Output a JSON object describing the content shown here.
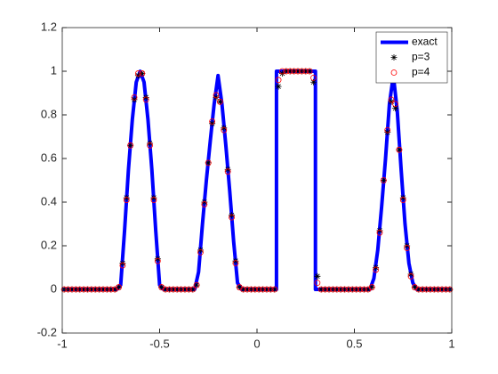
{
  "chart_data": {
    "type": "line",
    "xlim": [
      -1,
      1
    ],
    "xticks": [
      -1,
      -0.5,
      0,
      0.5,
      1
    ],
    "ylim": [
      -0.2,
      1.2
    ],
    "yticks": [
      -0.2,
      0,
      0.2,
      0.4,
      0.6,
      0.8,
      1,
      1.2
    ],
    "grid": false,
    "legend_position": "upper-right",
    "series": [
      {
        "name": "exact",
        "color": "#0000ff",
        "mode": "line",
        "x": [
          -1,
          -0.72,
          -0.7,
          -0.68,
          -0.66,
          -0.64,
          -0.62,
          -0.6,
          -0.58,
          -0.56,
          -0.54,
          -0.52,
          -0.5,
          -0.48,
          -0.32,
          -0.3,
          -0.28,
          -0.26,
          -0.24,
          -0.22,
          -0.2,
          -0.18,
          -0.16,
          -0.14,
          -0.12,
          -0.1,
          -0.08,
          0.1,
          0.1,
          0.3,
          0.3,
          0.58,
          0.6,
          0.62,
          0.64,
          0.66,
          0.68,
          0.7,
          0.72,
          0.74,
          0.76,
          0.78,
          0.8,
          0.82,
          1
        ],
        "values": [
          0,
          0,
          0.02,
          0.27,
          0.55,
          0.78,
          0.95,
          1,
          0.95,
          0.78,
          0.55,
          0.27,
          0.02,
          0,
          0,
          0.08,
          0.3,
          0.5,
          0.68,
          0.85,
          0.98,
          0.85,
          0.66,
          0.45,
          0.22,
          0.03,
          0,
          0,
          1,
          1,
          0,
          0,
          0.05,
          0.18,
          0.38,
          0.6,
          0.85,
          0.98,
          0.82,
          0.55,
          0.3,
          0.12,
          0.03,
          0,
          0
        ]
      },
      {
        "name": "p=3",
        "color": "#000000",
        "mode": "star",
        "x": [
          -0.99,
          -0.97,
          -0.95,
          -0.93,
          -0.91,
          -0.89,
          -0.87,
          -0.85,
          -0.83,
          -0.81,
          -0.79,
          -0.77,
          -0.75,
          -0.73,
          -0.71,
          -0.69,
          -0.67,
          -0.65,
          -0.63,
          -0.61,
          -0.59,
          -0.57,
          -0.55,
          -0.53,
          -0.51,
          -0.49,
          -0.47,
          -0.45,
          -0.43,
          -0.41,
          -0.39,
          -0.37,
          -0.35,
          -0.33,
          -0.31,
          -0.29,
          -0.27,
          -0.25,
          -0.23,
          -0.21,
          -0.19,
          -0.17,
          -0.15,
          -0.13,
          -0.11,
          -0.09,
          -0.07,
          -0.05,
          -0.03,
          -0.01,
          0.01,
          0.03,
          0.05,
          0.07,
          0.09,
          0.11,
          0.13,
          0.15,
          0.17,
          0.19,
          0.21,
          0.23,
          0.25,
          0.27,
          0.29,
          0.31,
          0.33,
          0.35,
          0.37,
          0.39,
          0.41,
          0.43,
          0.45,
          0.47,
          0.49,
          0.51,
          0.53,
          0.55,
          0.57,
          0.59,
          0.61,
          0.63,
          0.65,
          0.67,
          0.69,
          0.71,
          0.73,
          0.75,
          0.77,
          0.79,
          0.81,
          0.83,
          0.85,
          0.87,
          0.89,
          0.91,
          0.93,
          0.95,
          0.97,
          0.99
        ],
        "values": [
          0,
          0,
          0,
          0,
          0,
          0,
          0,
          0,
          0,
          0,
          0,
          0,
          0,
          0,
          0.01,
          0.12,
          0.42,
          0.66,
          0.87,
          0.98,
          0.99,
          0.88,
          0.67,
          0.42,
          0.14,
          0.01,
          0,
          0,
          0,
          0,
          0,
          0,
          0,
          0,
          0.02,
          0.18,
          0.4,
          0.58,
          0.76,
          0.88,
          0.86,
          0.74,
          0.55,
          0.34,
          0.13,
          0.01,
          0,
          0,
          0,
          0,
          0,
          0,
          0,
          0,
          0,
          0.93,
          0.99,
          1,
          1,
          1,
          1,
          1,
          1,
          1,
          0.95,
          0.06,
          0,
          0,
          0,
          0,
          0,
          0,
          0,
          0,
          0,
          0,
          0,
          0,
          0,
          0.01,
          0.1,
          0.27,
          0.5,
          0.72,
          0.86,
          0.83,
          0.64,
          0.42,
          0.2,
          0.07,
          0.01,
          0,
          0,
          0,
          0,
          0,
          0,
          0,
          0,
          0
        ]
      },
      {
        "name": "p=4",
        "color": "#ff0000",
        "mode": "circle",
        "x": [
          -0.99,
          -0.97,
          -0.95,
          -0.93,
          -0.91,
          -0.89,
          -0.87,
          -0.85,
          -0.83,
          -0.81,
          -0.79,
          -0.77,
          -0.75,
          -0.73,
          -0.71,
          -0.69,
          -0.67,
          -0.65,
          -0.63,
          -0.61,
          -0.59,
          -0.57,
          -0.55,
          -0.53,
          -0.51,
          -0.49,
          -0.47,
          -0.45,
          -0.43,
          -0.41,
          -0.39,
          -0.37,
          -0.35,
          -0.33,
          -0.31,
          -0.29,
          -0.27,
          -0.25,
          -0.23,
          -0.21,
          -0.19,
          -0.17,
          -0.15,
          -0.13,
          -0.11,
          -0.09,
          -0.07,
          -0.05,
          -0.03,
          -0.01,
          0.01,
          0.03,
          0.05,
          0.07,
          0.09,
          0.11,
          0.13,
          0.15,
          0.17,
          0.19,
          0.21,
          0.23,
          0.25,
          0.27,
          0.29,
          0.31,
          0.33,
          0.35,
          0.37,
          0.39,
          0.41,
          0.43,
          0.45,
          0.47,
          0.49,
          0.51,
          0.53,
          0.55,
          0.57,
          0.59,
          0.61,
          0.63,
          0.65,
          0.67,
          0.69,
          0.71,
          0.73,
          0.75,
          0.77,
          0.79,
          0.81,
          0.83,
          0.85,
          0.87,
          0.89,
          0.91,
          0.93,
          0.95,
          0.97,
          0.99
        ],
        "values": [
          0,
          0,
          0,
          0,
          0,
          0,
          0,
          0,
          0,
          0,
          0,
          0,
          0,
          0,
          0.01,
          0.11,
          0.41,
          0.66,
          0.88,
          0.99,
          0.99,
          0.87,
          0.66,
          0.41,
          0.13,
          0.01,
          0,
          0,
          0,
          0,
          0,
          0,
          0,
          0,
          0.02,
          0.17,
          0.39,
          0.58,
          0.77,
          0.89,
          0.86,
          0.73,
          0.54,
          0.33,
          0.12,
          0.01,
          0,
          0,
          0,
          0,
          0,
          0,
          0,
          0,
          0,
          0.96,
          1,
          1,
          1,
          1,
          1,
          1,
          1,
          1,
          0.97,
          0.03,
          0,
          0,
          0,
          0,
          0,
          0,
          0,
          0,
          0,
          0,
          0,
          0,
          0,
          0.01,
          0.09,
          0.26,
          0.5,
          0.73,
          0.87,
          0.85,
          0.64,
          0.41,
          0.19,
          0.06,
          0.01,
          0,
          0,
          0,
          0,
          0,
          0,
          0,
          0,
          0
        ]
      }
    ]
  }
}
